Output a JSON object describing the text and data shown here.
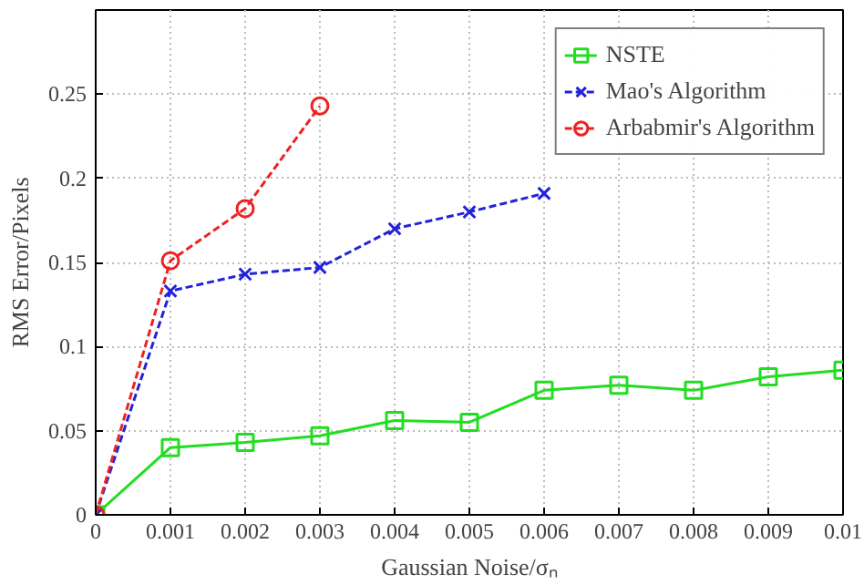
{
  "chart_data": {
    "type": "line",
    "xlabel": "Gaussian Noise/σₙ",
    "ylabel": "RMS Error/Pixels",
    "x": [
      0,
      0.001,
      0.002,
      0.003,
      0.004,
      0.005,
      0.006,
      0.007,
      0.008,
      0.009,
      0.01
    ],
    "series": [
      {
        "name": "NSTE",
        "color": "#22dd22",
        "marker": "square",
        "line_style": "solid",
        "values": [
          0,
          0.04,
          0.043,
          0.047,
          0.056,
          0.055,
          0.074,
          0.077,
          0.074,
          0.082,
          0.086
        ]
      },
      {
        "name": "Mao's Algorithm",
        "color": "#2222dd",
        "marker": "cross",
        "line_style": "dashed",
        "values": [
          0,
          0.133,
          0.143,
          0.147,
          0.17,
          0.18,
          0.191,
          null,
          null,
          null,
          null
        ]
      },
      {
        "name": "Arbabmir's Algorithm",
        "color": "#ee2222",
        "marker": "circle",
        "line_style": "dashed",
        "values": [
          0,
          0.151,
          0.182,
          0.243,
          null,
          null,
          null,
          null,
          null,
          null,
          null
        ]
      }
    ],
    "xlim": [
      0,
      0.01
    ],
    "ylim": [
      0,
      0.3
    ],
    "xticks": [
      0,
      0.001,
      0.002,
      0.003,
      0.004,
      0.005,
      0.006,
      0.007,
      0.008,
      0.009,
      0.01
    ],
    "yticks": [
      0,
      0.05,
      0.1,
      0.15,
      0.2,
      0.25
    ],
    "grid": true,
    "legend": "top right"
  }
}
